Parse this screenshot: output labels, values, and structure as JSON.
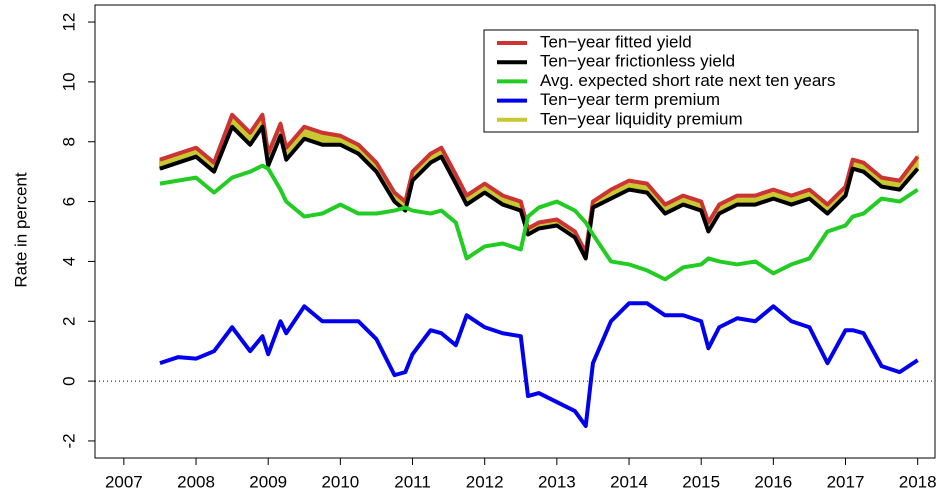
{
  "chart_data": {
    "type": "line",
    "ylabel": "Rate in percent",
    "x": [
      2007.5,
      2007.75,
      2008,
      2008.25,
      2008.5,
      2008.75,
      2008.92,
      2009,
      2009.17,
      2009.25,
      2009.5,
      2009.75,
      2010,
      2010.25,
      2010.5,
      2010.75,
      2010.9,
      2011,
      2011.25,
      2011.4,
      2011.6,
      2011.75,
      2012,
      2012.25,
      2012.5,
      2012.6,
      2012.75,
      2013,
      2013.25,
      2013.4,
      2013.5,
      2013.75,
      2014,
      2014.25,
      2014.5,
      2014.75,
      2015,
      2015.1,
      2015.25,
      2015.5,
      2015.75,
      2016,
      2016.25,
      2016.5,
      2016.75,
      2017,
      2017.1,
      2017.25,
      2017.5,
      2017.75,
      2018
    ],
    "series": [
      {
        "name": "Ten−year fitted yield",
        "color": "#cc3333",
        "values": [
          7.4,
          7.6,
          7.8,
          7.3,
          8.9,
          8.3,
          8.9,
          7.6,
          8.6,
          7.8,
          8.5,
          8.3,
          8.2,
          7.9,
          7.3,
          6.3,
          6.0,
          7.0,
          7.6,
          7.8,
          6.9,
          6.2,
          6.6,
          6.2,
          6.0,
          5.1,
          5.3,
          5.4,
          5.0,
          4.3,
          6.0,
          6.4,
          6.7,
          6.6,
          5.9,
          6.2,
          6.0,
          5.3,
          5.9,
          6.2,
          6.2,
          6.4,
          6.2,
          6.4,
          5.9,
          6.5,
          7.4,
          7.3,
          6.8,
          6.7,
          7.5
        ]
      },
      {
        "name": "Ten−year frictionless yield",
        "color": "#000000",
        "values": [
          7.1,
          7.3,
          7.5,
          7.0,
          8.5,
          7.9,
          8.5,
          7.2,
          8.2,
          7.4,
          8.1,
          7.9,
          7.9,
          7.6,
          7.0,
          6.0,
          5.7,
          6.7,
          7.3,
          7.5,
          6.6,
          5.9,
          6.3,
          5.9,
          5.7,
          4.9,
          5.1,
          5.2,
          4.8,
          4.1,
          5.8,
          6.1,
          6.4,
          6.3,
          5.6,
          5.9,
          5.7,
          5.0,
          5.6,
          5.9,
          5.9,
          6.1,
          5.9,
          6.1,
          5.6,
          6.2,
          7.1,
          7.0,
          6.5,
          6.4,
          7.1
        ]
      },
      {
        "name": "Avg. expected short rate next ten years",
        "color": "#22cc22",
        "values": [
          6.6,
          6.7,
          6.8,
          6.3,
          6.8,
          7.0,
          7.2,
          7.1,
          6.4,
          6.0,
          5.5,
          5.6,
          5.9,
          5.6,
          5.6,
          5.7,
          5.8,
          5.7,
          5.6,
          5.7,
          5.3,
          4.1,
          4.5,
          4.6,
          4.4,
          5.5,
          5.8,
          6.0,
          5.7,
          5.3,
          4.9,
          4.0,
          3.9,
          3.7,
          3.4,
          3.8,
          3.9,
          4.1,
          4.0,
          3.9,
          4.0,
          3.6,
          3.9,
          4.1,
          5.0,
          5.2,
          5.5,
          5.6,
          6.1,
          6.0,
          6.4
        ]
      },
      {
        "name": "Ten−year term premium",
        "color": "#0000ee",
        "values": [
          0.6,
          0.8,
          0.75,
          1.0,
          1.8,
          1.0,
          1.5,
          0.9,
          2.0,
          1.6,
          2.5,
          2.0,
          2.0,
          2.0,
          1.4,
          0.2,
          0.3,
          0.9,
          1.7,
          1.6,
          1.2,
          2.2,
          1.8,
          1.6,
          1.5,
          -0.5,
          -0.4,
          -0.7,
          -1.0,
          -1.5,
          0.6,
          2.0,
          2.6,
          2.6,
          2.2,
          2.2,
          2.0,
          1.1,
          1.8,
          2.1,
          2.0,
          2.5,
          2.0,
          1.8,
          0.6,
          1.7,
          1.7,
          1.6,
          0.5,
          0.3,
          0.7
        ]
      },
      {
        "name": "Ten−year liquidity premium",
        "color": "#c8c832",
        "values": [
          0.3,
          0.3,
          0.3,
          0.3,
          0.4,
          0.4,
          0.4,
          0.4,
          0.4,
          0.4,
          0.4,
          0.4,
          0.3,
          0.3,
          0.3,
          0.3,
          0.3,
          0.3,
          0.3,
          0.3,
          0.3,
          0.3,
          0.3,
          0.3,
          0.3,
          0.2,
          0.2,
          0.2,
          0.2,
          0.2,
          0.2,
          0.3,
          0.3,
          0.3,
          0.3,
          0.3,
          0.3,
          0.3,
          0.3,
          0.3,
          0.3,
          0.3,
          0.3,
          0.3,
          0.3,
          0.3,
          0.3,
          0.3,
          0.3,
          0.3,
          0.4
        ]
      }
    ],
    "xlim": [
      2006.6,
      2018.24
    ],
    "xticks": [
      2007,
      2008,
      2009,
      2010,
      2011,
      2012,
      2013,
      2014,
      2015,
      2016,
      2017,
      2018
    ],
    "ylim": [
      -2.57,
      12.57
    ],
    "yticks": [
      -2,
      0,
      2,
      4,
      6,
      8,
      10,
      12
    ],
    "reference_line": 0,
    "legend": "top-right"
  }
}
